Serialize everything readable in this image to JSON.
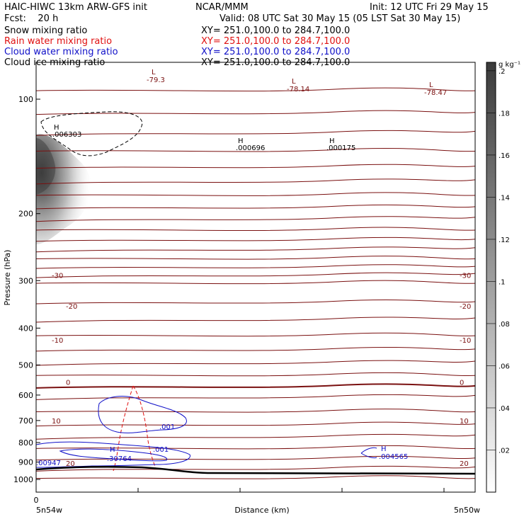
{
  "header": {
    "title": "HAIC-HIWC 13km ARW-GFS init",
    "org": "NCAR/MMM",
    "init": "Init: 12 UTC Fri 29 May 15",
    "fcst": "Fcst:    20 h",
    "valid": "Valid: 08 UTC Sat 30 May 15 (05 LST Sat 30 May 15)",
    "fields": [
      {
        "name": "Snow mixing ratio",
        "color": "#000000",
        "xy": "XY= 251.0,100.0 to 284.7,100.0"
      },
      {
        "name": "Rain water mixing ratio",
        "color": "#e01010",
        "xy": "XY= 251.0,100.0 to 284.7,100.0"
      },
      {
        "name": "Cloud water mixing ratio",
        "color": "#1010c8",
        "xy": "XY= 251.0,100.0 to 284.7,100.0"
      },
      {
        "name": "Cloud ice mixing ratio",
        "color": "#000000",
        "xy": "XY= 251.0,100.0 to 284.7,100.0"
      }
    ]
  },
  "chart_data": {
    "type": "cross-section contour",
    "xlabel": "Distance (km)",
    "ylabel": "Pressure (hPa)",
    "x_start_label": "5n54w",
    "x_end_label": "5n50w",
    "x_tick_labels": [
      "0"
    ],
    "y_ticks": [
      100,
      200,
      300,
      400,
      500,
      600,
      700,
      800,
      900,
      1000
    ],
    "y_scale": "log",
    "ylim": [
      1080,
      80
    ],
    "colorbar": {
      "unit": "g kg⁻¹",
      "ticks": [
        ".02",
        ".04",
        ".06",
        ".08",
        ".1",
        ".12",
        ".14",
        ".16",
        ".18",
        ".2"
      ]
    },
    "temperature_contour_labels": [
      {
        "value": "-30",
        "side": "both",
        "pressure": 290
      },
      {
        "value": "-20",
        "side": "both",
        "pressure": 350
      },
      {
        "value": "-10",
        "side": "both",
        "pressure": 430
      },
      {
        "value": "0",
        "side": "both",
        "pressure": 555
      },
      {
        "value": "10",
        "side": "both",
        "pressure": 700
      },
      {
        "value": "20",
        "side": "both",
        "pressure": 905
      }
    ],
    "extrema_labels": [
      {
        "kind": "L",
        "value": "-79.3",
        "color": "#7a1010"
      },
      {
        "kind": "L",
        "value": "-78.14",
        "color": "#7a1010"
      },
      {
        "kind": "L",
        "value": "-78.47",
        "color": "#7a1010"
      },
      {
        "kind": "H",
        "value": ".006303",
        "color": "#000000"
      },
      {
        "kind": "H",
        "value": ".000696",
        "color": "#000000"
      },
      {
        "kind": "H",
        "value": ".000175",
        "color": "#000000"
      },
      {
        "kind": "H",
        "value": ".30764",
        "color": "#1010c8"
      },
      {
        "kind": "H",
        "value": ".004565",
        "color": "#1010c8"
      }
    ],
    "cloud_water_labels": [
      ".001",
      ".001",
      ".00947"
    ]
  }
}
